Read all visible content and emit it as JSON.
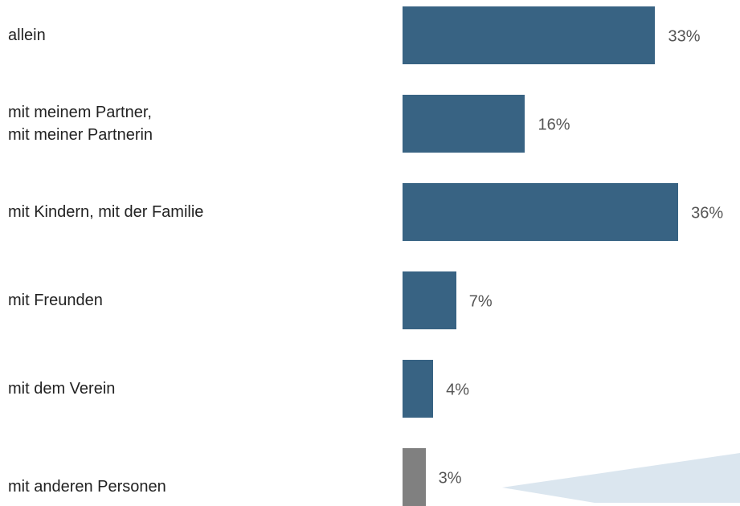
{
  "chart_data": {
    "type": "bar",
    "orientation": "horizontal",
    "categories": [
      "allein",
      "mit meinem Partner,\nmit meiner Partnerin",
      "mit Kindern, mit der Familie",
      "mit Freunden",
      "mit dem Verein",
      "mit anderen Personen"
    ],
    "values": [
      33,
      16,
      36,
      7,
      4,
      3
    ],
    "value_labels": [
      "33%",
      "16%",
      "36%",
      "7%",
      "4%",
      "3%"
    ],
    "colors": [
      "#386383",
      "#386383",
      "#386383",
      "#386383",
      "#386383",
      "#808080"
    ]
  }
}
